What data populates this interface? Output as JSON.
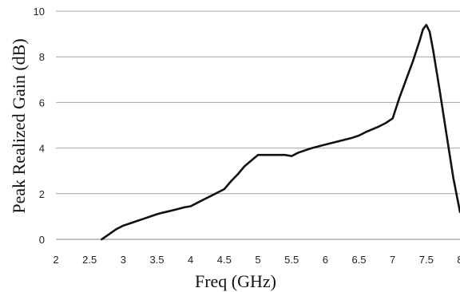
{
  "chart_data": {
    "type": "line",
    "title": "",
    "xlabel": "Freq (GHz)",
    "ylabel": "Peak Realized Gain (dB)",
    "xlim": [
      2,
      8
    ],
    "ylim": [
      0,
      10
    ],
    "x_ticks": [
      "2",
      "2.5",
      "3",
      "3.5",
      "4",
      "4.5",
      "5",
      "5.5",
      "6",
      "6.5",
      "7",
      "7.5",
      "8"
    ],
    "y_ticks": [
      "0",
      "2",
      "4",
      "6",
      "8",
      "10"
    ],
    "grid": "horizontal",
    "legend": "none",
    "line_color": "#111111",
    "series": [
      {
        "x": [
          2.68,
          2.8,
          2.9,
          3.0,
          3.1,
          3.2,
          3.3,
          3.4,
          3.5,
          3.6,
          3.7,
          3.8,
          3.9,
          4.0,
          4.1,
          4.2,
          4.3,
          4.4,
          4.5,
          4.6,
          4.7,
          4.8,
          4.9,
          5.0,
          5.2,
          5.4,
          5.5,
          5.6,
          5.8,
          6.0,
          6.2,
          6.4,
          6.5,
          6.6,
          6.8,
          6.9,
          7.0,
          7.1,
          7.2,
          7.3,
          7.4,
          7.45,
          7.5,
          7.55,
          7.6,
          7.7,
          7.8,
          7.9,
          8.0
        ],
        "y": [
          0.0,
          0.25,
          0.45,
          0.6,
          0.7,
          0.8,
          0.9,
          1.0,
          1.1,
          1.18,
          1.25,
          1.32,
          1.4,
          1.45,
          1.6,
          1.75,
          1.9,
          2.05,
          2.2,
          2.55,
          2.85,
          3.2,
          3.45,
          3.7,
          3.7,
          3.7,
          3.65,
          3.8,
          4.0,
          4.15,
          4.3,
          4.45,
          4.55,
          4.7,
          4.95,
          5.1,
          5.3,
          6.2,
          7.0,
          7.8,
          8.7,
          9.2,
          9.4,
          9.1,
          8.3,
          6.5,
          4.6,
          2.7,
          1.2
        ]
      }
    ]
  }
}
